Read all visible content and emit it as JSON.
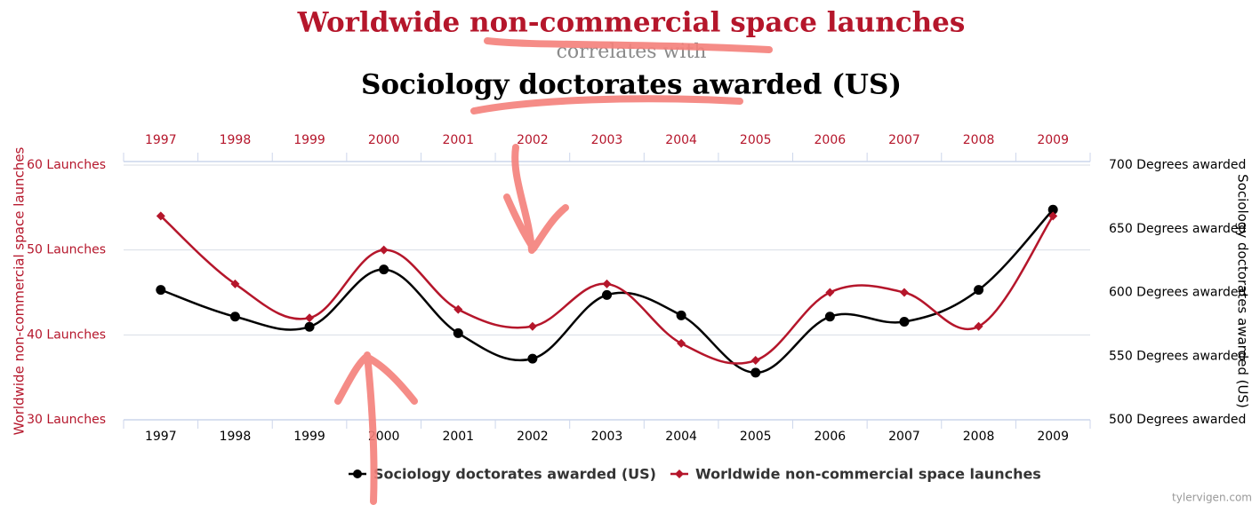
{
  "chart_data": {
    "type": "line",
    "title": "Worldwide non-commercial space launches",
    "subtitle": "correlates with",
    "title2": "Sociology doctorates awarded (US)",
    "categories": [
      "1997",
      "1998",
      "1999",
      "2000",
      "2001",
      "2002",
      "2003",
      "2004",
      "2005",
      "2006",
      "2007",
      "2008",
      "2009"
    ],
    "series": [
      {
        "name": "Sociology doctorates awarded (US)",
        "color": "#000000",
        "axis": "y2",
        "values": [
          602,
          581,
          573,
          618,
          568,
          548,
          598,
          582,
          537,
          581,
          577,
          602,
          665
        ]
      },
      {
        "name": "Worldwide non-commercial space launches",
        "color": "#b5162b",
        "values": [
          54,
          46,
          42,
          50,
          43,
          41,
          46,
          39,
          37,
          45,
          45,
          41,
          54
        ]
      }
    ],
    "ylabel": "Worldwide non-commercial space launches",
    "y2label": "Sociology doctorates awarded (US)",
    "ylim": [
      30,
      60
    ],
    "yticks": [
      {
        "value": 30,
        "label": "30 Launches"
      },
      {
        "value": 40,
        "label": "40 Launches"
      },
      {
        "value": 50,
        "label": "50 Launches"
      },
      {
        "value": 60,
        "label": "60 Launches"
      }
    ],
    "y2lim": [
      500,
      700
    ],
    "y2ticks": [
      {
        "value": 500,
        "label": "500 Degrees awarded"
      },
      {
        "value": 550,
        "label": "550 Degrees awarded"
      },
      {
        "value": 600,
        "label": "600 Degrees awarded"
      },
      {
        "value": 650,
        "label": "650 Degrees awarded"
      },
      {
        "value": 700,
        "label": "700 Degrees awarded"
      }
    ],
    "grid": true,
    "legend": "bottom",
    "source": "tylervigen.com"
  }
}
